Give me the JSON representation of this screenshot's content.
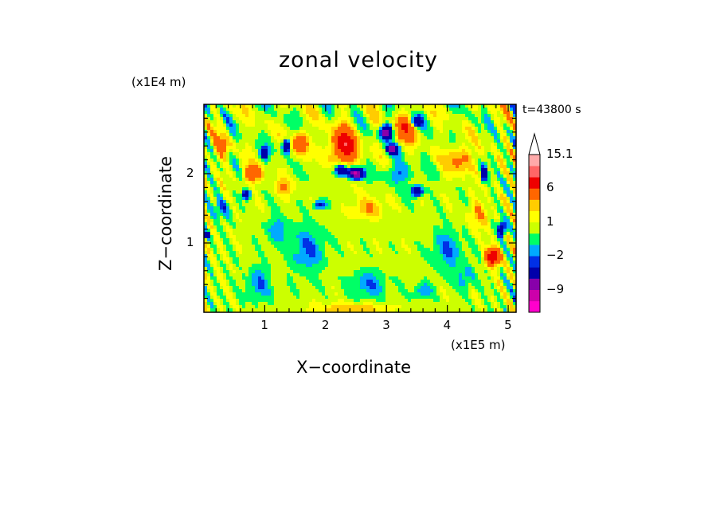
{
  "chart_data": {
    "type": "heatmap",
    "title": "zonal velocity",
    "xlabel": "X−coordinate",
    "ylabel": "Z−coordinate",
    "x_unit": "(x1E5 m)",
    "y_unit": "(x1E4 m)",
    "time_label": "t=43800 s",
    "xlim": [
      0,
      5.13
    ],
    "ylim": [
      0,
      3.0
    ],
    "x_ticks": [
      1,
      2,
      3,
      4,
      5
    ],
    "y_ticks": [
      1,
      2
    ],
    "x_tick_labels": [
      "1",
      "2",
      "3",
      "4",
      "5"
    ],
    "y_tick_labels": [
      "1",
      "2"
    ],
    "colorbar": {
      "levels": [
        -15,
        -12,
        -9,
        -6,
        -3,
        -2,
        -1,
        0,
        1,
        2,
        3,
        6,
        9,
        12,
        15.1
      ],
      "colors": [
        "#ff00cc",
        "#cc00aa",
        "#8800aa",
        "#0000aa",
        "#0030e6",
        "#00aaff",
        "#00ff66",
        "#ccff00",
        "#ffff00",
        "#ffcc00",
        "#ff6600",
        "#ee0000",
        "#ff6666",
        "#ffaaaa"
      ],
      "extend_max_color": "#ffffff",
      "tick_labels": [
        {
          "value": 15.1,
          "label": "15.1"
        },
        {
          "value": 6,
          "label": "6"
        },
        {
          "value": 1,
          "label": "1"
        },
        {
          "value": -2,
          "label": "−2"
        },
        {
          "value": -9,
          "label": "−9"
        }
      ]
    },
    "background_value": 0.5,
    "features": [
      {
        "x": 2.3,
        "z": 2.4,
        "value": 8,
        "sx": 0.22,
        "sz": 0.25
      },
      {
        "x": 3.3,
        "z": 2.65,
        "value": 5,
        "sx": 0.2,
        "sz": 0.2
      },
      {
        "x": 1.6,
        "z": 2.45,
        "value": 6,
        "sx": 0.12,
        "sz": 0.15
      },
      {
        "x": 4.2,
        "z": 2.2,
        "value": 4,
        "sx": 0.2,
        "sz": 0.2
      },
      {
        "x": 0.8,
        "z": 2.0,
        "value": 5,
        "sx": 0.15,
        "sz": 0.12
      },
      {
        "x": 0.3,
        "z": 2.4,
        "value": 4,
        "sx": 0.12,
        "sz": 0.15
      },
      {
        "x": 1.3,
        "z": 1.8,
        "value": 3,
        "sx": 0.15,
        "sz": 0.12
      },
      {
        "x": 2.7,
        "z": 1.5,
        "value": 3,
        "sx": 0.25,
        "sz": 0.15
      },
      {
        "x": 4.75,
        "z": 0.8,
        "value": 9,
        "sx": 0.12,
        "sz": 0.12
      },
      {
        "x": 2.4,
        "z": 0.05,
        "value": 3,
        "sx": 0.6,
        "sz": 0.08
      },
      {
        "x": 4.5,
        "z": 1.4,
        "value": 3,
        "sx": 0.15,
        "sz": 0.2
      },
      {
        "x": 2.5,
        "z": 2.0,
        "value": -10,
        "sx": 0.12,
        "sz": 0.08
      },
      {
        "x": 3.0,
        "z": 2.6,
        "value": -9,
        "sx": 0.1,
        "sz": 0.1
      },
      {
        "x": 2.25,
        "z": 2.05,
        "value": -7,
        "sx": 0.1,
        "sz": 0.08
      },
      {
        "x": 1.35,
        "z": 2.4,
        "value": -7,
        "sx": 0.06,
        "sz": 0.1
      },
      {
        "x": 1.0,
        "z": 2.3,
        "value": -6,
        "sx": 0.06,
        "sz": 0.08
      },
      {
        "x": 0.7,
        "z": 1.7,
        "value": -6,
        "sx": 0.06,
        "sz": 0.06
      },
      {
        "x": 3.1,
        "z": 2.35,
        "value": -7,
        "sx": 0.1,
        "sz": 0.07
      },
      {
        "x": 3.5,
        "z": 1.75,
        "value": -6,
        "sx": 0.1,
        "sz": 0.08
      },
      {
        "x": 3.5,
        "z": 2.75,
        "value": -5,
        "sx": 0.1,
        "sz": 0.08
      },
      {
        "x": 4.9,
        "z": 1.2,
        "value": -7,
        "sx": 0.06,
        "sz": 0.1
      },
      {
        "x": 4.6,
        "z": 2.0,
        "value": -5,
        "sx": 0.05,
        "sz": 0.12
      },
      {
        "x": 0.05,
        "z": 1.1,
        "value": -5,
        "sx": 0.05,
        "sz": 0.05
      },
      {
        "x": 1.9,
        "z": 1.55,
        "value": -4,
        "sx": 0.1,
        "sz": 0.06
      },
      {
        "x": 1.7,
        "z": 0.9,
        "value": -2,
        "sx": 0.3,
        "sz": 0.35
      },
      {
        "x": 2.7,
        "z": 0.4,
        "value": -2,
        "sx": 0.3,
        "sz": 0.2
      },
      {
        "x": 4.0,
        "z": 0.9,
        "value": -2,
        "sx": 0.25,
        "sz": 0.3
      },
      {
        "x": 0.9,
        "z": 0.4,
        "value": -2,
        "sx": 0.2,
        "sz": 0.25
      },
      {
        "x": 0.3,
        "z": 1.5,
        "value": -2,
        "sx": 0.15,
        "sz": 0.15
      },
      {
        "x": 3.6,
        "z": 0.3,
        "value": -2,
        "sx": 0.15,
        "sz": 0.12
      },
      {
        "x": 3.2,
        "z": 2.0,
        "value": -2,
        "sx": 0.25,
        "sz": 0.15
      },
      {
        "x": 4.3,
        "z": 0.5,
        "value": -1.5,
        "sx": 0.15,
        "sz": 0.2
      },
      {
        "x": 1.2,
        "z": 1.2,
        "value": -1.5,
        "sx": 0.2,
        "sz": 0.2
      }
    ]
  }
}
